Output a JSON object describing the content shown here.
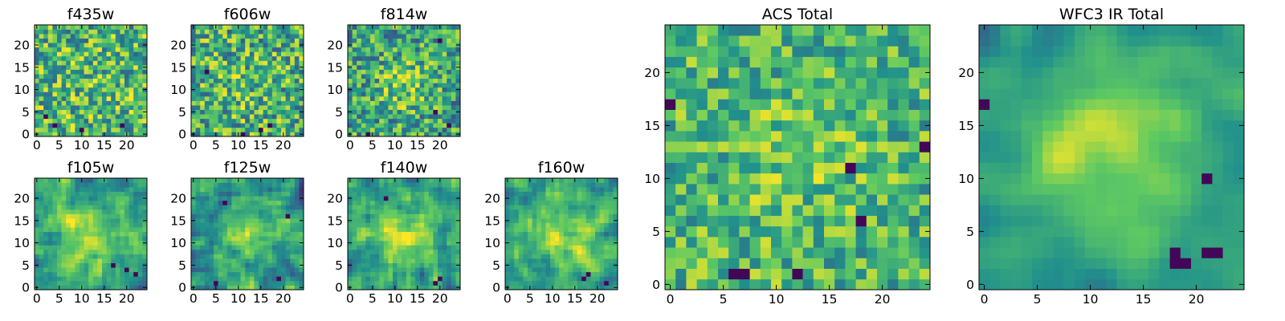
{
  "figure": {
    "colormap": "viridis",
    "colormap_stops": [
      "#440154",
      "#3b528b",
      "#21918c",
      "#5ec962",
      "#fde725"
    ],
    "background": "#ffffff"
  },
  "chart_data": [
    {
      "type": "heatmap",
      "title": "f435w",
      "grid": [
        25,
        25
      ],
      "xlim": [
        0,
        24
      ],
      "ylim": [
        0,
        24
      ],
      "xticks": [
        0,
        5,
        10,
        15,
        20
      ],
      "yticks": [
        0,
        5,
        10,
        15,
        20
      ],
      "seed": 11,
      "mean": 0.66,
      "noise": 0.34,
      "smooth": 0,
      "blob": [
        12,
        12,
        5,
        0.04
      ],
      "dark_spots": [
        [
          10,
          1
        ],
        [
          4,
          2
        ],
        [
          19,
          2
        ],
        [
          2,
          4
        ]
      ]
    },
    {
      "type": "heatmap",
      "title": "f606w",
      "grid": [
        25,
        25
      ],
      "xlim": [
        0,
        24
      ],
      "ylim": [
        0,
        24
      ],
      "xticks": [
        0,
        5,
        10,
        15,
        20
      ],
      "yticks": [
        0,
        5,
        10,
        15,
        20
      ],
      "seed": 23,
      "mean": 0.63,
      "noise": 0.34,
      "smooth": 0,
      "blob": [
        11,
        11,
        5,
        0.06
      ],
      "dark_spots": [
        [
          11,
          0
        ],
        [
          15,
          1
        ],
        [
          17,
          2
        ],
        [
          3,
          14
        ]
      ]
    },
    {
      "type": "heatmap",
      "title": "f814w",
      "grid": [
        25,
        25
      ],
      "xlim": [
        0,
        24
      ],
      "ylim": [
        0,
        24
      ],
      "xticks": [
        0,
        5,
        10,
        15,
        20
      ],
      "yticks": [
        0,
        5,
        10,
        15,
        20
      ],
      "seed": 37,
      "mean": 0.58,
      "noise": 0.32,
      "smooth": 0,
      "blob": [
        12,
        11,
        4,
        0.22
      ],
      "dark_spots": [
        [
          19,
          5
        ],
        [
          20,
          21
        ],
        [
          22,
          2
        ],
        [
          4,
          0
        ]
      ]
    },
    {
      "type": "heatmap",
      "title": "f105w",
      "grid": [
        25,
        25
      ],
      "xlim": [
        0,
        24
      ],
      "ylim": [
        0,
        24
      ],
      "xticks": [
        0,
        5,
        10,
        15,
        20
      ],
      "yticks": [
        0,
        5,
        10,
        15,
        20
      ],
      "seed": 41,
      "mean": 0.56,
      "noise": 0.25,
      "smooth": 1,
      "blob": [
        12,
        11,
        5,
        0.32
      ],
      "dark_spots": [
        [
          20,
          4
        ],
        [
          17,
          5
        ],
        [
          22,
          3
        ]
      ]
    },
    {
      "type": "heatmap",
      "title": "f125w",
      "grid": [
        25,
        25
      ],
      "xlim": [
        0,
        24
      ],
      "ylim": [
        0,
        24
      ],
      "xticks": [
        0,
        5,
        10,
        15,
        20
      ],
      "yticks": [
        0,
        5,
        10,
        15,
        20
      ],
      "seed": 53,
      "mean": 0.52,
      "noise": 0.28,
      "smooth": 1,
      "blob": [
        13,
        11,
        5,
        0.25
      ],
      "dark_spots": [
        [
          7,
          19
        ],
        [
          5,
          1
        ],
        [
          19,
          2
        ],
        [
          21,
          16
        ]
      ]
    },
    {
      "type": "heatmap",
      "title": "f140w",
      "grid": [
        25,
        25
      ],
      "xlim": [
        0,
        24
      ],
      "ylim": [
        0,
        24
      ],
      "xticks": [
        0,
        5,
        10,
        15,
        20
      ],
      "yticks": [
        0,
        5,
        10,
        15,
        20
      ],
      "seed": 67,
      "mean": 0.56,
      "noise": 0.27,
      "smooth": 1,
      "blob": [
        12,
        12,
        5,
        0.28
      ],
      "dark_spots": [
        [
          19,
          1
        ],
        [
          20,
          2
        ],
        [
          8,
          20
        ]
      ]
    },
    {
      "type": "heatmap",
      "title": "f160w",
      "grid": [
        25,
        25
      ],
      "xlim": [
        0,
        24
      ],
      "ylim": [
        0,
        24
      ],
      "xticks": [
        0,
        5,
        10,
        15,
        20
      ],
      "yticks": [
        0,
        5,
        10,
        15,
        20
      ],
      "seed": 79,
      "mean": 0.57,
      "noise": 0.25,
      "smooth": 1,
      "blob": [
        12,
        11,
        5,
        0.3
      ],
      "dark_spots": [
        [
          17,
          2
        ],
        [
          18,
          3
        ],
        [
          22,
          1
        ]
      ]
    },
    {
      "type": "heatmap",
      "title": "ACS Total",
      "grid": [
        25,
        25
      ],
      "xlim": [
        0,
        24
      ],
      "ylim": [
        0,
        24
      ],
      "xticks": [
        0,
        5,
        10,
        15,
        20
      ],
      "yticks": [
        0,
        5,
        10,
        15,
        20
      ],
      "seed": 91,
      "mean": 0.66,
      "noise": 0.26,
      "smooth": 0,
      "blob": [
        12,
        12,
        5,
        0.08
      ],
      "dark_spots": [
        [
          17,
          11
        ],
        [
          6,
          1
        ],
        [
          7,
          1
        ],
        [
          12,
          1
        ],
        [
          24,
          13
        ],
        [
          0,
          17
        ],
        [
          18,
          6
        ]
      ]
    },
    {
      "type": "heatmap",
      "title": "WFC3 IR Total",
      "grid": [
        25,
        25
      ],
      "xlim": [
        0,
        24
      ],
      "ylim": [
        0,
        24
      ],
      "xticks": [
        0,
        5,
        10,
        15,
        20
      ],
      "yticks": [
        0,
        5,
        10,
        15,
        20
      ],
      "seed": 103,
      "mean": 0.56,
      "noise": 0.12,
      "smooth": 2,
      "blob": [
        12,
        13,
        5,
        0.35
      ],
      "dark_spots": [
        [
          18,
          3
        ],
        [
          19,
          2
        ],
        [
          18,
          2
        ],
        [
          22,
          3
        ],
        [
          21,
          3
        ],
        [
          0,
          17
        ],
        [
          21,
          10
        ]
      ]
    }
  ]
}
